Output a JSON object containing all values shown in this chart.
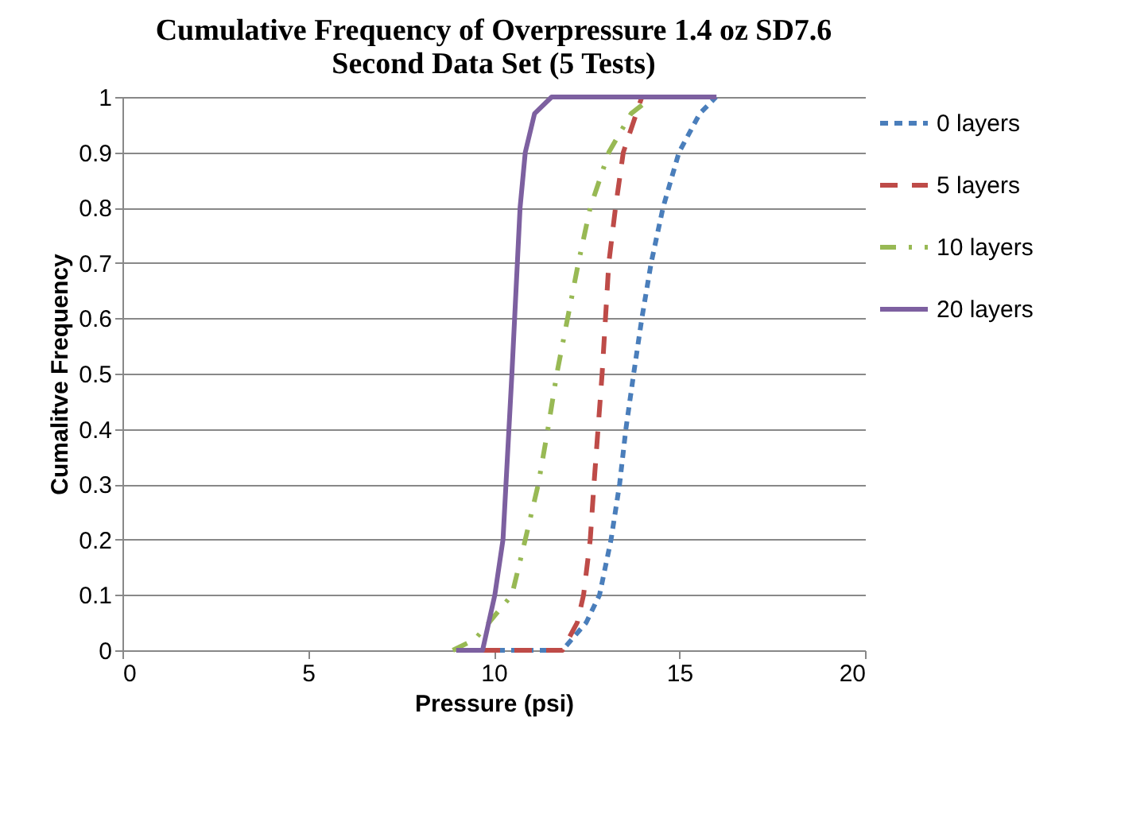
{
  "chart_data": {
    "type": "line",
    "title": [
      "Cumulative Frequency of Overpressure 1.4 oz SD7.6",
      "Second Data Set (5 Tests)"
    ],
    "xlabel": "Pressure (psi)",
    "ylabel": "Cumalitve Frequency",
    "xlim": [
      0,
      20
    ],
    "xticks": [
      0,
      5,
      10,
      15,
      20
    ],
    "ylim": [
      0,
      1
    ],
    "yticks": [
      0,
      0.1,
      0.2,
      0.3,
      0.4,
      0.5,
      0.6,
      0.7,
      0.8,
      0.9,
      1
    ],
    "grid": "y",
    "legend": "right",
    "marker": "none",
    "series": [
      {
        "name": "0 layers",
        "color": "#4a7ebb",
        "line_style": "dotted",
        "x": [
          9.7,
          11.85,
          12.49,
          12.85,
          13.16,
          13.39,
          13.56,
          13.77,
          13.99,
          14.24,
          14.56,
          14.99,
          15.55,
          15.99
        ],
        "values": [
          0,
          0,
          0.05,
          0.1,
          0.2,
          0.3,
          0.4,
          0.5,
          0.6,
          0.7,
          0.8,
          0.9,
          0.97,
          1
        ]
      },
      {
        "name": "5 layers",
        "color": "#be4b48",
        "line_style": "dashed",
        "x": [
          9.7,
          11.85,
          12.25,
          12.42,
          12.6,
          12.7,
          12.92,
          13.1,
          13.28,
          13.49,
          13.99
        ],
        "values": [
          0,
          0,
          0.05,
          0.1,
          0.2,
          0.3,
          0.5,
          0.7,
          0.8,
          0.9,
          1
        ]
      },
      {
        "name": "10 layers",
        "color": "#98b954",
        "line_style": "dashdot",
        "x": [
          8.9,
          9.5,
          10.49,
          10.85,
          11.2,
          11.46,
          11.7,
          11.99,
          12.28,
          12.6,
          13.1,
          13.7,
          14.27
        ],
        "values": [
          0,
          0.02,
          0.1,
          0.2,
          0.3,
          0.4,
          0.5,
          0.6,
          0.7,
          0.8,
          0.9,
          0.97,
          1
        ]
      },
      {
        "name": "20 layers",
        "color": "#7d60a0",
        "line_style": "solid",
        "x": [
          8.99,
          9.7,
          10.03,
          10.25,
          10.49,
          10.71,
          10.85,
          11.1,
          11.56,
          16.0
        ],
        "values": [
          0,
          0.0,
          0.1,
          0.2,
          0.5,
          0.8,
          0.9,
          0.97,
          1,
          1
        ]
      }
    ]
  }
}
